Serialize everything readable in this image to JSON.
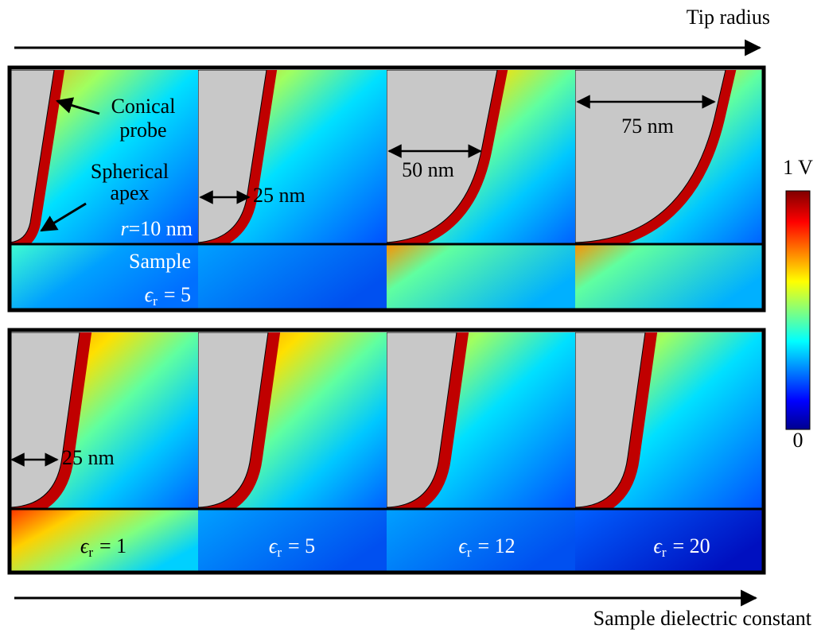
{
  "header": {
    "top_axis": "Tip radius",
    "bottom_axis": "Sample dielectric constant"
  },
  "annotations": {
    "conical": [
      "Conical",
      "probe"
    ],
    "spherical": [
      "Spherical",
      "apex"
    ],
    "radius": {
      "symbol": "r",
      "text": "=10 nm"
    },
    "sample": "Sample",
    "sample_permittivity": {
      "symbol": "ϵ",
      "sub": "r",
      "text": "= 5"
    }
  },
  "tip_radius_labels": [
    "25 nm",
    "50 nm",
    "75 nm",
    "25 nm"
  ],
  "permittivity_labels": [
    {
      "symbol": "ϵ",
      "sub": "r",
      "text": "= 1"
    },
    {
      "symbol": "ϵ",
      "sub": "r",
      "text": "= 5"
    },
    {
      "symbol": "ϵ",
      "sub": "r",
      "text": "= 12"
    },
    {
      "symbol": "ϵ",
      "sub": "r",
      "text": "= 20"
    }
  ],
  "colorbar": {
    "max_label": "1 V",
    "min_label": "0"
  }
}
